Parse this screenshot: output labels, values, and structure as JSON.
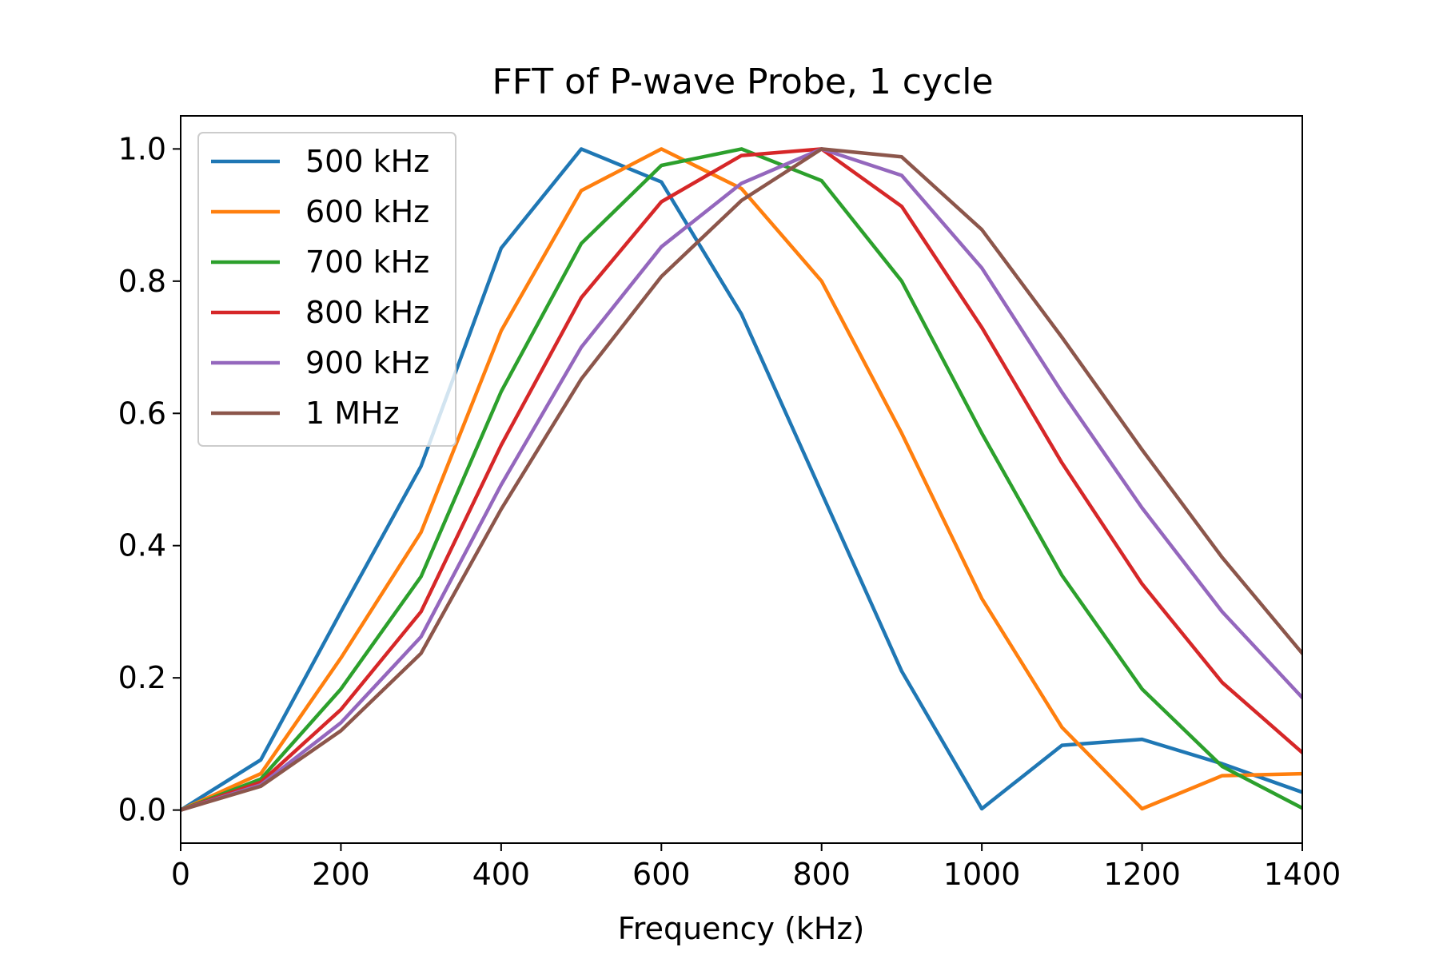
{
  "chart_data": {
    "type": "line",
    "title": "FFT of P-wave Probe, 1 cycle",
    "xlabel": "Frequency (kHz)",
    "ylabel": "",
    "xlim": [
      0,
      1400
    ],
    "ylim": [
      -0.05,
      1.05
    ],
    "xticks": [
      0,
      200,
      400,
      600,
      800,
      1000,
      1200,
      1400
    ],
    "yticks": [
      0.0,
      0.2,
      0.4,
      0.6,
      0.8,
      1.0
    ],
    "xtick_labels": [
      "0",
      "200",
      "400",
      "600",
      "800",
      "1000",
      "1200",
      "1400"
    ],
    "ytick_labels": [
      "0.0",
      "0.2",
      "0.4",
      "0.6",
      "0.8",
      "1.0"
    ],
    "grid": false,
    "legend_position": "top-left",
    "x": [
      0,
      100,
      200,
      300,
      400,
      500,
      600,
      700,
      800,
      900,
      1000,
      1100,
      1200,
      1300,
      1400
    ],
    "series": [
      {
        "name": "500 kHz",
        "color": "#1f77b4",
        "values": [
          0.0,
          0.076,
          0.3,
          0.52,
          0.85,
          1.0,
          0.95,
          0.75,
          0.48,
          0.21,
          0.002,
          0.098,
          0.107,
          0.07,
          0.027
        ]
      },
      {
        "name": "600 kHz",
        "color": "#ff7f0e",
        "values": [
          0.0,
          0.055,
          0.23,
          0.42,
          0.725,
          0.937,
          1.0,
          0.94,
          0.8,
          0.57,
          0.32,
          0.125,
          0.002,
          0.052,
          0.055
        ]
      },
      {
        "name": "700 kHz",
        "color": "#2ca02c",
        "values": [
          0.0,
          0.047,
          0.183,
          0.353,
          0.633,
          0.857,
          0.975,
          1.0,
          0.952,
          0.8,
          0.57,
          0.355,
          0.183,
          0.066,
          0.003
        ]
      },
      {
        "name": "800 kHz",
        "color": "#d62728",
        "values": [
          0.0,
          0.042,
          0.152,
          0.3,
          0.552,
          0.775,
          0.92,
          0.99,
          1.0,
          0.913,
          0.73,
          0.525,
          0.342,
          0.193,
          0.087
        ]
      },
      {
        "name": "900 kHz",
        "color": "#9467bd",
        "values": [
          0.0,
          0.038,
          0.132,
          0.262,
          0.492,
          0.7,
          0.852,
          0.948,
          1.0,
          0.96,
          0.82,
          0.632,
          0.457,
          0.3,
          0.17
        ]
      },
      {
        "name": "1 MHz",
        "color": "#8c564b",
        "values": [
          0.0,
          0.036,
          0.12,
          0.237,
          0.455,
          0.652,
          0.807,
          0.922,
          1.0,
          0.988,
          0.878,
          0.715,
          0.545,
          0.382,
          0.237
        ]
      }
    ]
  }
}
